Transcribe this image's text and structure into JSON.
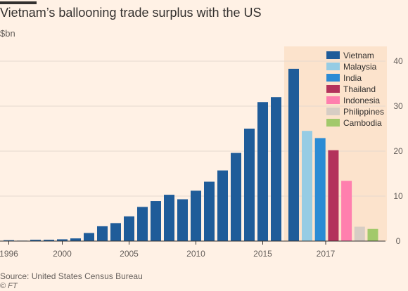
{
  "chart_data": {
    "type": "bar",
    "title": "Vietnam’s ballooning trade surplus with the US",
    "unit": "$bn",
    "ylim": [
      0,
      40
    ],
    "yticks": [
      0,
      10,
      20,
      30,
      40
    ],
    "grid": true,
    "series": [
      {
        "name": "Vietnam",
        "color": "#1f5c99",
        "years": [
          1996,
          1997,
          1998,
          1999,
          2000,
          2001,
          2002,
          2003,
          2004,
          2005,
          2006,
          2007,
          2008,
          2009,
          2010,
          2011,
          2012,
          2013,
          2014,
          2015,
          2016,
          2017
        ],
        "values": [
          0.2,
          0.1,
          0.3,
          0.3,
          0.4,
          0.6,
          1.8,
          3.3,
          4.0,
          5.5,
          7.6,
          8.9,
          10.3,
          9.3,
          11.2,
          13.2,
          15.7,
          19.6,
          25.0,
          30.9,
          32.0,
          38.3
        ]
      }
    ],
    "comparison_2017": [
      {
        "name": "Malaysia",
        "value": 24.5,
        "color": "#96cce4"
      },
      {
        "name": "India",
        "value": 22.9,
        "color": "#2b8bd4"
      },
      {
        "name": "Thailand",
        "value": 20.2,
        "color": "#b3325b"
      },
      {
        "name": "Indonesia",
        "value": 13.4,
        "color": "#ff7fae"
      },
      {
        "name": "Philippines",
        "value": 3.2,
        "color": "#d7cdc4"
      },
      {
        "name": "Cambodia",
        "value": 2.7,
        "color": "#a2c96b"
      }
    ],
    "xtick_labels": [
      "1996",
      "2000",
      "2005",
      "2010",
      "2015"
    ],
    "highlight_label": "2017",
    "legend_position": "top-right",
    "highlight_color": "#fce3cc"
  },
  "source": "Source: United States Census Bureau",
  "credit": "© FT"
}
